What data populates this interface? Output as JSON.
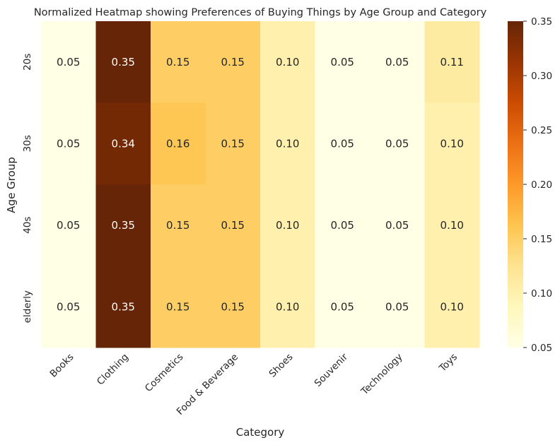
{
  "chart_data": {
    "type": "heatmap",
    "title": "Normalized Heatmap showing Preferences of Buying Things by Age Group and Category",
    "xlabel": "Category",
    "ylabel": "Age Group",
    "x_categories": [
      "Books",
      "Clothing",
      "Cosmetics",
      "Food & Beverage",
      "Shoes",
      "Souvenir",
      "Technology",
      "Toys"
    ],
    "y_categories": [
      "20s",
      "30s",
      "40s",
      "elderly"
    ],
    "values": [
      [
        0.05,
        0.35,
        0.15,
        0.15,
        0.1,
        0.05,
        0.05,
        0.11
      ],
      [
        0.05,
        0.34,
        0.16,
        0.15,
        0.1,
        0.05,
        0.05,
        0.1
      ],
      [
        0.05,
        0.35,
        0.15,
        0.15,
        0.1,
        0.05,
        0.05,
        0.1
      ],
      [
        0.05,
        0.35,
        0.15,
        0.15,
        0.1,
        0.05,
        0.05,
        0.1
      ]
    ],
    "value_format": "0.00",
    "colorbar": {
      "colormap": "YlOrBr",
      "range": [
        0.05,
        0.35
      ],
      "ticks": [
        "0.05",
        "0.10",
        "0.15",
        "0.20",
        "0.25",
        "0.30",
        "0.35"
      ]
    },
    "grid": false,
    "legend": "colorbar-right"
  }
}
